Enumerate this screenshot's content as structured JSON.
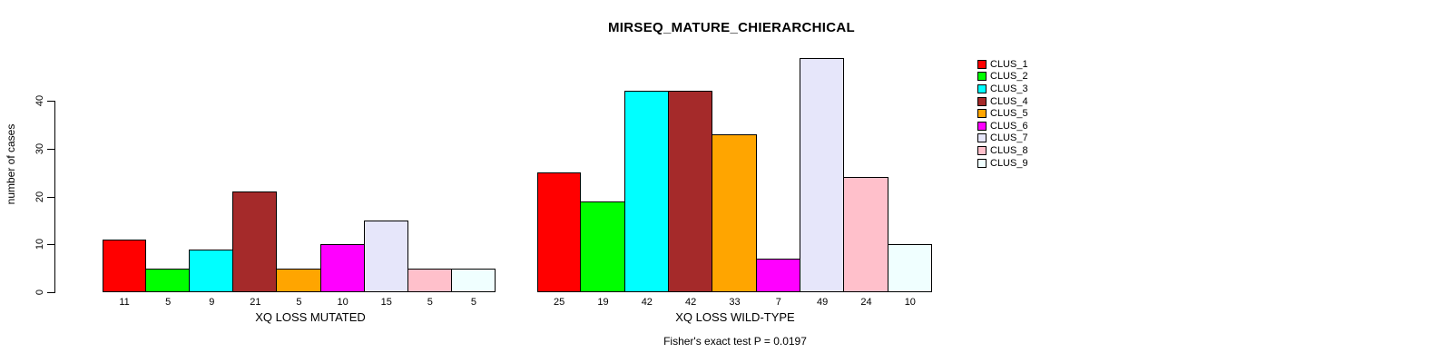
{
  "title": "MIRSEQ_MATURE_CHIERARCHICAL",
  "annotation": "Fisher's exact test P = 0.0197",
  "y_axis": {
    "label": "number of cases",
    "ticks": [
      "0",
      "10",
      "20",
      "30",
      "40"
    ]
  },
  "legend": {
    "position": "right",
    "items": [
      {
        "label": "CLUS_1",
        "color": "#FF0000"
      },
      {
        "label": "CLUS_2",
        "color": "#00FF00"
      },
      {
        "label": "CLUS_3",
        "color": "#00FFFF"
      },
      {
        "label": "CLUS_4",
        "color": "#A52A2A"
      },
      {
        "label": "CLUS_5",
        "color": "#FFA500"
      },
      {
        "label": "CLUS_6",
        "color": "#FF00FF"
      },
      {
        "label": "CLUS_7",
        "color": "#E6E6FA"
      },
      {
        "label": "CLUS_8",
        "color": "#FFC0CB"
      },
      {
        "label": "CLUS_9",
        "color": "#F0FFFF"
      }
    ]
  },
  "chart_data": [
    {
      "type": "bar",
      "xlabel": "XQ LOSS MUTATED",
      "ylabel": "number of cases",
      "categories": [
        "CLUS_1",
        "CLUS_2",
        "CLUS_3",
        "CLUS_4",
        "CLUS_5",
        "CLUS_6",
        "CLUS_7",
        "CLUS_8",
        "CLUS_9"
      ],
      "values": [
        11,
        5,
        9,
        21,
        5,
        10,
        15,
        5,
        5
      ],
      "colors": [
        "#FF0000",
        "#00FF00",
        "#00FFFF",
        "#A52A2A",
        "#FFA500",
        "#FF00FF",
        "#E6E6FA",
        "#FFC0CB",
        "#F0FFFF"
      ],
      "yticks": [
        0,
        10,
        20,
        30,
        40
      ],
      "ylim": [
        0,
        40
      ],
      "grid": false,
      "bar_gap": 0
    },
    {
      "type": "bar",
      "xlabel": "XQ LOSS WILD-TYPE",
      "ylabel": "number of cases",
      "categories": [
        "CLUS_1",
        "CLUS_2",
        "CLUS_3",
        "CLUS_4",
        "CLUS_5",
        "CLUS_6",
        "CLUS_7",
        "CLUS_8",
        "CLUS_9"
      ],
      "values": [
        25,
        19,
        42,
        42,
        33,
        7,
        49,
        24,
        10
      ],
      "colors": [
        "#FF0000",
        "#00FF00",
        "#00FFFF",
        "#A52A2A",
        "#FFA500",
        "#FF00FF",
        "#E6E6FA",
        "#FFC0CB",
        "#F0FFFF"
      ],
      "yticks": [
        0,
        10,
        20,
        30,
        40
      ],
      "ylim": [
        0,
        40
      ],
      "grid": false,
      "bar_gap": 0
    }
  ]
}
